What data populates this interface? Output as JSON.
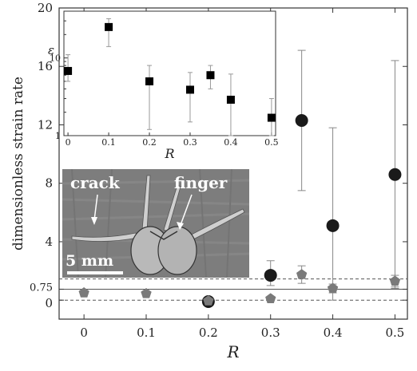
{
  "chart_data": [
    {
      "id": "main",
      "type": "scatter",
      "xlabel": "R",
      "ylabel": "dimensionless strain rate",
      "xlim": [
        -0.04,
        0.52
      ],
      "ylim": [
        -1.3,
        20
      ],
      "xticks": [
        0,
        0.1,
        0.2,
        0.3,
        0.4,
        0.5
      ],
      "xtick_labels": [
        "0",
        "0.1",
        "0.2",
        "0.3",
        "0.4",
        "0.5"
      ],
      "yticks": [
        0,
        0.75,
        4,
        8,
        12,
        16,
        20
      ],
      "ytick_labels": [
        "0",
        "0.75",
        "4",
        "8",
        "12",
        "16",
        "20"
      ],
      "reference_lines": [
        {
          "y": 0.75,
          "style": "solid"
        },
        {
          "y": 0,
          "style": "dashed"
        },
        {
          "y": 1.45,
          "style": "dashed"
        }
      ],
      "series": [
        {
          "marker": "circle-large",
          "color": "#1a1a1a",
          "points": [
            {
              "x": 0.2,
              "y": -0.1,
              "err_low": 0,
              "err_high": 0
            },
            {
              "x": 0.3,
              "y": 1.7,
              "err_low": 0.7,
              "err_high": 1.0
            },
            {
              "x": 0.35,
              "y": 12.3,
              "err_low": 4.8,
              "err_high": 4.8
            },
            {
              "x": 0.4,
              "y": 5.1,
              "err_low": 5.1,
              "err_high": 6.7
            },
            {
              "x": 0.5,
              "y": 8.6,
              "err_low": 7.8,
              "err_high": 7.8
            }
          ]
        },
        {
          "marker": "pentagon",
          "color": "#7a7a7a",
          "points": [
            {
              "x": 0.0,
              "y": 0.5,
              "err_low": 0,
              "err_high": 0
            },
            {
              "x": 0.1,
              "y": 0.45,
              "err_low": 0,
              "err_high": 0
            },
            {
              "x": 0.2,
              "y": -0.05,
              "err_low": 0,
              "err_high": 0
            },
            {
              "x": 0.3,
              "y": 0.1,
              "err_low": 0,
              "err_high": 0
            },
            {
              "x": 0.35,
              "y": 1.75,
              "err_low": 0.6,
              "err_high": 0.6
            },
            {
              "x": 0.4,
              "y": 0.8,
              "err_low": 0.3,
              "err_high": 0.3
            },
            {
              "x": 0.5,
              "y": 1.3,
              "err_low": 0.4,
              "err_high": 0.4
            }
          ]
        }
      ]
    },
    {
      "id": "inset",
      "type": "scatter",
      "xlabel": "R",
      "ylabel": "ε",
      "y_scale": "log",
      "xlim": [
        -0.01,
        0.51
      ],
      "ylim": [
        1,
        40
      ],
      "xticks": [
        0,
        0.1,
        0.2,
        0.3,
        0.4,
        0.5
      ],
      "xtick_labels": [
        "0",
        "0.1",
        "0.2",
        "0.3",
        "0.4",
        "0.5"
      ],
      "yticks": [
        1,
        10
      ],
      "ytick_labels": [
        "1",
        "10"
      ],
      "series": [
        {
          "marker": "square",
          "color": "#000000",
          "points": [
            {
              "x": 0.0,
              "y": 6.8,
              "lo": 5.0,
              "hi": 11.0
            },
            {
              "x": 0.1,
              "y": 25,
              "lo": 14,
              "hi": 32
            },
            {
              "x": 0.2,
              "y": 5.0,
              "lo": 1.2,
              "hi": 8.0
            },
            {
              "x": 0.3,
              "y": 3.9,
              "lo": 1.5,
              "hi": 6.5
            },
            {
              "x": 0.35,
              "y": 6.0,
              "lo": 4.0,
              "hi": 8.0
            },
            {
              "x": 0.4,
              "y": 2.9,
              "lo": 1.0,
              "hi": 6.2
            },
            {
              "x": 0.5,
              "y": 1.7,
              "lo": 1.0,
              "hi": 3.0
            }
          ]
        }
      ]
    }
  ],
  "photo": {
    "labels": {
      "crack": "crack",
      "finger": "finger",
      "scale": "5 mm"
    }
  },
  "colors": {
    "photo_bg": "#7d7d7d",
    "axis": "#333333"
  }
}
